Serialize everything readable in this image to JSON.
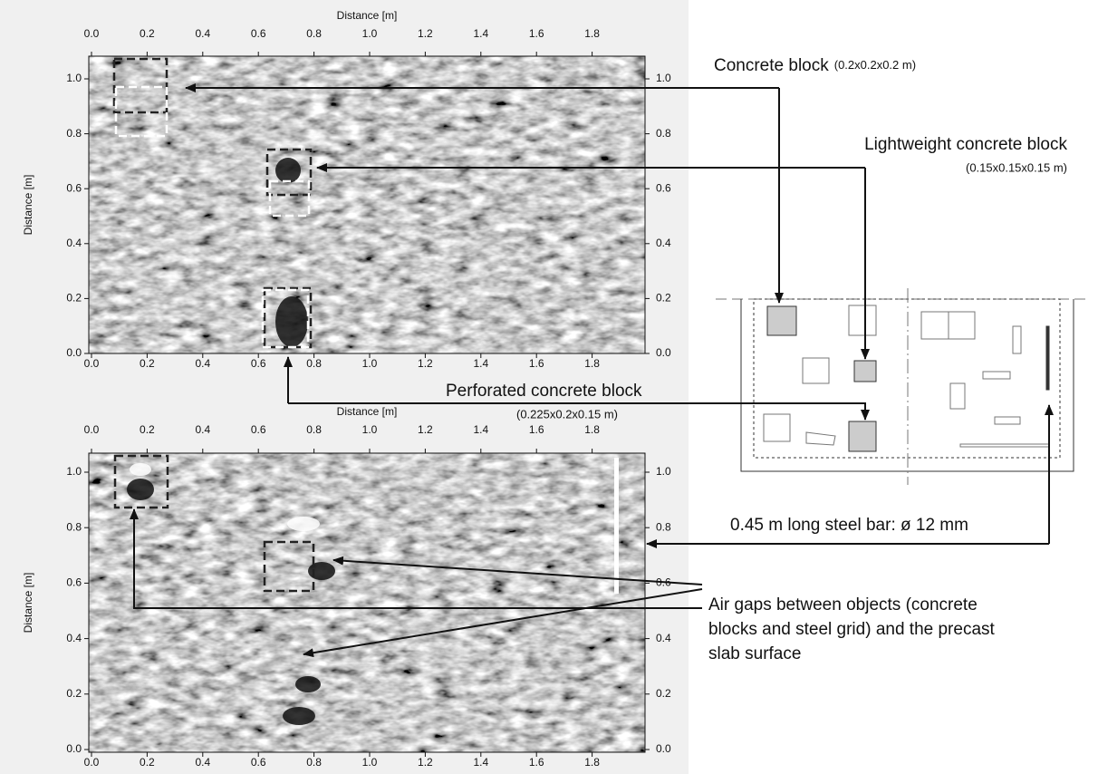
{
  "panels": [
    {
      "x_label": "Distance [m]",
      "y_label": "Distance [m]",
      "x_ticks": [
        "0.0",
        "0.2",
        "0.4",
        "0.6",
        "0.8",
        "1.0",
        "1.2",
        "1.4",
        "1.6",
        "1.8"
      ],
      "y_ticks": [
        "0.0",
        "0.2",
        "0.4",
        "0.6",
        "0.8",
        "1.0"
      ]
    },
    {
      "x_label": "Distance [m]",
      "y_label": "Distance [m]",
      "x_ticks": [
        "0.0",
        "0.2",
        "0.4",
        "0.6",
        "0.8",
        "1.0",
        "1.2",
        "1.4",
        "1.6",
        "1.8"
      ],
      "y_ticks": [
        "0.0",
        "0.2",
        "0.4",
        "0.6",
        "0.8",
        "1.0"
      ]
    }
  ],
  "annotations": {
    "concrete_block": {
      "name": "Concrete block",
      "size": "(0.2x0.2x0.2 m)"
    },
    "lightweight_block": {
      "name": "Lightweight concrete block",
      "size": "(0.15x0.15x0.15 m)"
    },
    "perforated_block": {
      "name": "Perforated concrete block",
      "size": "(0.225x0.2x0.15 m)"
    },
    "steel_bar": "0.45 m long steel bar: ø 12 mm",
    "air_gaps": [
      "Air gaps between objects (concrete",
      "blocks and steel grid) and the precast",
      "slab surface"
    ]
  }
}
